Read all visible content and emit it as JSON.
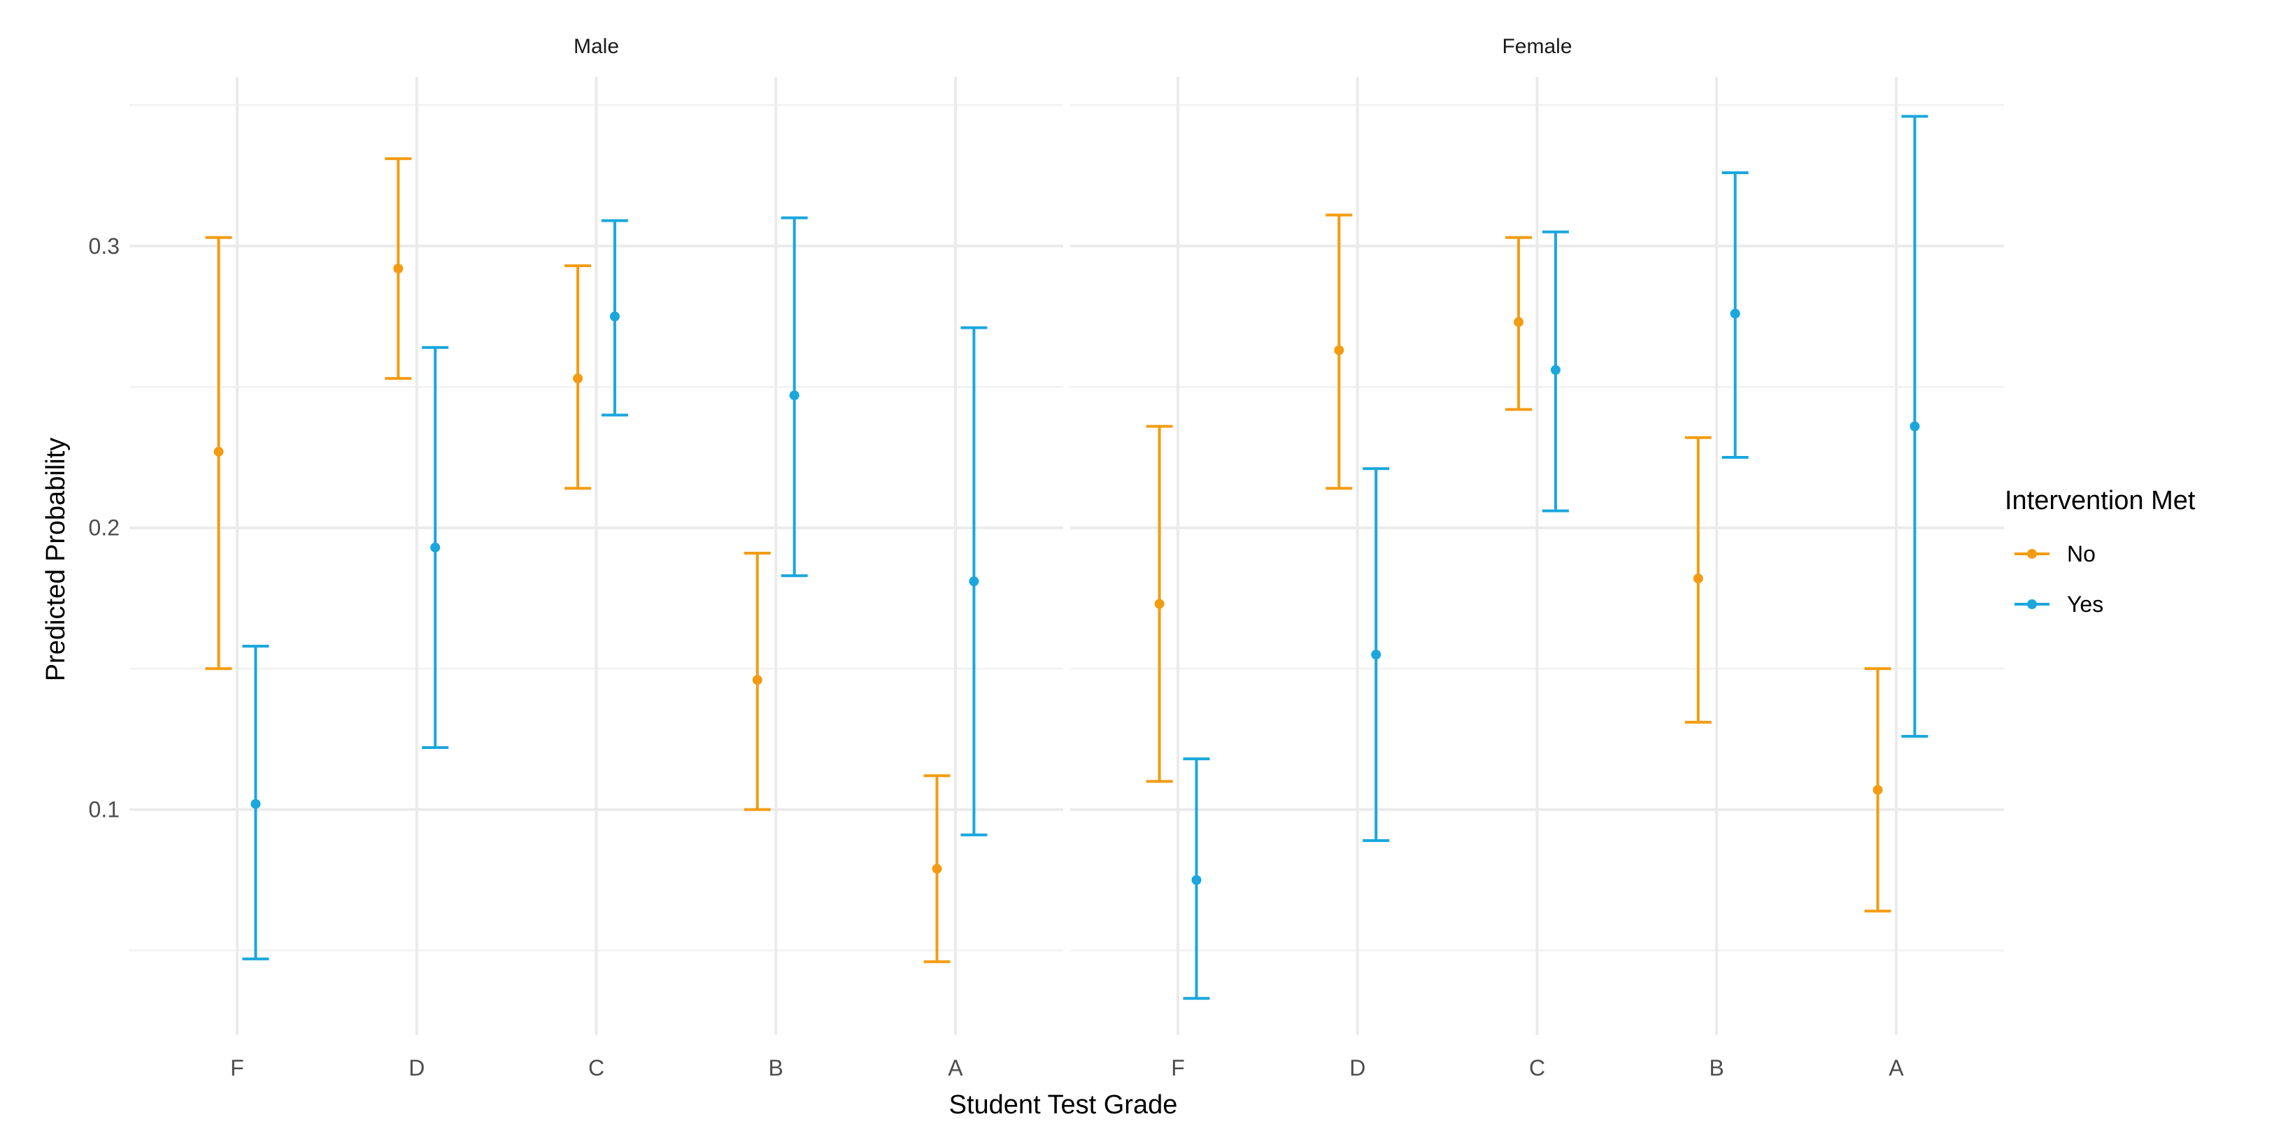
{
  "chart_data": {
    "type": "errorbar",
    "xlabel": "Student Test Grade",
    "ylabel": "Predicted Probability",
    "categories": [
      "F",
      "D",
      "C",
      "B",
      "A"
    ],
    "ylim": [
      0.02,
      0.36
    ],
    "yticks": [
      0.1,
      0.2,
      0.3
    ],
    "ytick_labels": [
      "0.1",
      "0.2",
      "0.3"
    ],
    "legend": {
      "title": "Intervention Met",
      "position": "right",
      "entries": [
        {
          "label": "No",
          "color": "#f39c12"
        },
        {
          "label": "Yes",
          "color": "#1aa7dd"
        }
      ]
    },
    "panels": [
      {
        "title": "Male",
        "series": [
          {
            "name": "No",
            "color": "#f39c12",
            "estimates": [
              0.227,
              0.292,
              0.253,
              0.146,
              0.079
            ],
            "lower": [
              0.15,
              0.253,
              0.214,
              0.1,
              0.046
            ],
            "upper": [
              0.303,
              0.331,
              0.293,
              0.191,
              0.112
            ]
          },
          {
            "name": "Yes",
            "color": "#1aa7dd",
            "estimates": [
              0.102,
              0.193,
              0.275,
              0.247,
              0.181
            ],
            "lower": [
              0.047,
              0.122,
              0.24,
              0.183,
              0.091
            ],
            "upper": [
              0.158,
              0.264,
              0.309,
              0.31,
              0.271
            ]
          }
        ]
      },
      {
        "title": "Female",
        "series": [
          {
            "name": "No",
            "color": "#f39c12",
            "estimates": [
              0.173,
              0.263,
              0.273,
              0.182,
              0.107
            ],
            "lower": [
              0.11,
              0.214,
              0.242,
              0.131,
              0.064
            ],
            "upper": [
              0.236,
              0.311,
              0.303,
              0.232,
              0.15
            ]
          },
          {
            "name": "Yes",
            "color": "#1aa7dd",
            "estimates": [
              0.075,
              0.155,
              0.256,
              0.276,
              0.236
            ],
            "lower": [
              0.033,
              0.089,
              0.206,
              0.225,
              0.126
            ],
            "upper": [
              0.118,
              0.221,
              0.305,
              0.326,
              0.346
            ]
          }
        ]
      }
    ]
  }
}
